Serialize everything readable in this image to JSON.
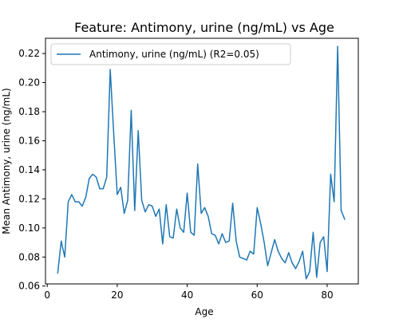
{
  "chart_data": {
    "type": "line",
    "title": "Feature: Antimony, urine (ng/mL) vs Age",
    "xlabel": "Age",
    "ylabel": "Mean Antimony, urine (ng/mL)",
    "xlim": [
      -0.5,
      88.9
    ],
    "ylim": [
      0.0615,
      0.2305
    ],
    "xticks": [
      0,
      20,
      40,
      60,
      80
    ],
    "yticks": [
      0.06,
      0.08,
      0.1,
      0.12,
      0.14,
      0.16,
      0.18,
      0.2,
      0.22
    ],
    "ytick_labels": [
      "0.06",
      "0.08",
      "0.10",
      "0.12",
      "0.14",
      "0.16",
      "0.18",
      "0.20",
      "0.22"
    ],
    "grid": false,
    "legend_position": "top-left",
    "series": [
      {
        "name": "Antimony, urine (ng/mL) (R2=0.05)",
        "color": "#1f77b4",
        "x": [
          3,
          4,
          5,
          6,
          7,
          8,
          9,
          10,
          11,
          12,
          13,
          14,
          15,
          16,
          17,
          18,
          19,
          20,
          21,
          22,
          23,
          24,
          25,
          26,
          27,
          28,
          29,
          30,
          31,
          32,
          33,
          34,
          35,
          36,
          37,
          38,
          39,
          40,
          41,
          42,
          43,
          44,
          45,
          46,
          47,
          48,
          49,
          50,
          51,
          52,
          53,
          54,
          55,
          56,
          57,
          58,
          59,
          60,
          61,
          62,
          63,
          64,
          65,
          66,
          67,
          68,
          69,
          70,
          71,
          72,
          73,
          74,
          75,
          76,
          77,
          78,
          79,
          80,
          81,
          82,
          83,
          84,
          85
        ],
        "y": [
          0.069,
          0.091,
          0.08,
          0.118,
          0.123,
          0.118,
          0.118,
          0.115,
          0.121,
          0.134,
          0.137,
          0.135,
          0.127,
          0.127,
          0.135,
          0.209,
          0.165,
          0.123,
          0.128,
          0.11,
          0.119,
          0.181,
          0.112,
          0.167,
          0.119,
          0.111,
          0.116,
          0.115,
          0.108,
          0.113,
          0.089,
          0.116,
          0.094,
          0.093,
          0.113,
          0.1,
          0.097,
          0.124,
          0.097,
          0.095,
          0.144,
          0.11,
          0.114,
          0.108,
          0.096,
          0.095,
          0.089,
          0.096,
          0.09,
          0.091,
          0.117,
          0.091,
          0.08,
          0.079,
          0.078,
          0.084,
          0.082,
          0.114,
          0.103,
          0.09,
          0.074,
          0.083,
          0.092,
          0.084,
          0.079,
          0.076,
          0.083,
          0.076,
          0.072,
          0.077,
          0.084,
          0.065,
          0.07,
          0.097,
          0.066,
          0.09,
          0.094,
          0.07,
          0.137,
          0.118,
          0.225,
          0.112,
          0.106
        ]
      }
    ]
  }
}
